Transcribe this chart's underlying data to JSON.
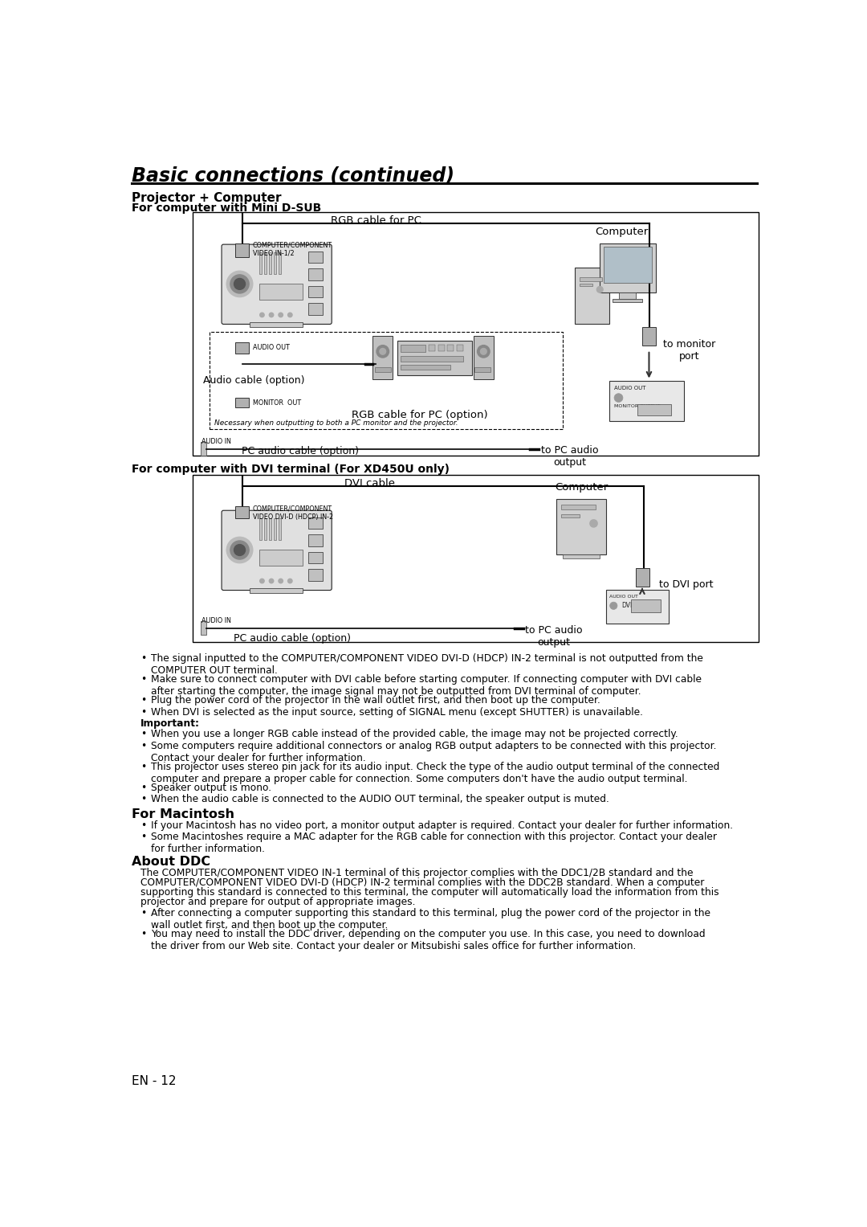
{
  "title": "Basic connections (continued)",
  "page_number": "EN - 12",
  "bg_color": "#ffffff",
  "text_color": "#000000",
  "section1_heading": "Projector + Computer",
  "section1_subheading": "For computer with Mini D-SUB",
  "section2_heading": "For computer with DVI terminal (For XD450U only)",
  "d1_rgb_cable": "RGB cable for PC",
  "d1_comp_video": "COMPUTER/COMPONENT\nVIDEO IN-1/2",
  "d1_computer": "Computer",
  "d1_audio_out": "AUDIO OUT",
  "d1_audio_cable": "Audio cable (option)",
  "d1_monitor_out": "MONITOR  OUT",
  "d1_rgb_option": "RGB cable for PC (option)",
  "d1_necessary": "Necessary when outputting to both a PC monitor and the projector.",
  "d1_audio_in": "AUDIO IN",
  "d1_pc_audio_cable": "PC audio cable (option)",
  "d1_to_monitor_port": "to monitor\nport",
  "d1_to_pc_audio": "to PC audio\noutput",
  "d2_dvi_cable": "DVI cable",
  "d2_comp_video": "COMPUTER/COMPONENT\nVIDEO DVI-D (HDCP) IN-2",
  "d2_computer": "Computer",
  "d2_audio_in": "AUDIO IN",
  "d2_pc_audio_cable": "PC audio cable (option)",
  "d2_to_pc_audio": "to PC audio\noutput",
  "d2_to_dvi_port": "to DVI port",
  "bullets_main": [
    "The signal inputted to the COMPUTER/COMPONENT VIDEO DVI-D (HDCP) IN-2 terminal is not outputted from the\nCOMPUTER OUT terminal.",
    "Make sure to connect computer with DVI cable before starting computer. If connecting computer with DVI cable\nafter starting the computer, the image signal may not be outputted from DVI terminal of computer.",
    "Plug the power cord of the projector in the wall outlet first, and then boot up the computer.",
    "When DVI is selected as the input source, setting of SIGNAL menu (except SHUTTER) is unavailable."
  ],
  "important_label": "Important:",
  "bullets_important": [
    "When you use a longer RGB cable instead of the provided cable, the image may not be projected correctly.",
    "Some computers require additional connectors or analog RGB output adapters to be connected with this projector.\nContact your dealer for further information.",
    "This projector uses stereo pin jack for its audio input. Check the type of the audio output terminal of the connected\ncomputer and prepare a proper cable for connection. Some computers don't have the audio output terminal.",
    "Speaker output is mono.",
    "When the audio cable is connected to the AUDIO OUT terminal, the speaker output is muted."
  ],
  "macintosh_heading": "For Macintosh",
  "macintosh_bullets": [
    "If your Macintosh has no video port, a monitor output adapter is required. Contact your dealer for further information.",
    "Some Macintoshes require a MAC adapter for the RGB cable for connection with this projector. Contact your dealer\nfor further information."
  ],
  "ddc_heading": "About DDC",
  "ddc_text": "The COMPUTER/COMPONENT VIDEO IN-1 terminal of this projector complies with the DDC1/2B standard and the\nCOMPUTER/COMPONENT VIDEO DVI-D (HDCP) IN-2 terminal complies with the DDC2B standard. When a computer\nsupporting this standard is connected to this terminal, the computer will automatically load the information from this\nprojector and prepare for output of appropriate images.",
  "ddc_bullets": [
    "After connecting a computer supporting this standard to this terminal, plug the power cord of the projector in the\nwall outlet first, and then boot up the computer.",
    "You may need to install the DDC driver, depending on the computer you use. In this case, you need to download\nthe driver from our Web site. Contact your dealer or Mitsubishi sales office for further information."
  ]
}
